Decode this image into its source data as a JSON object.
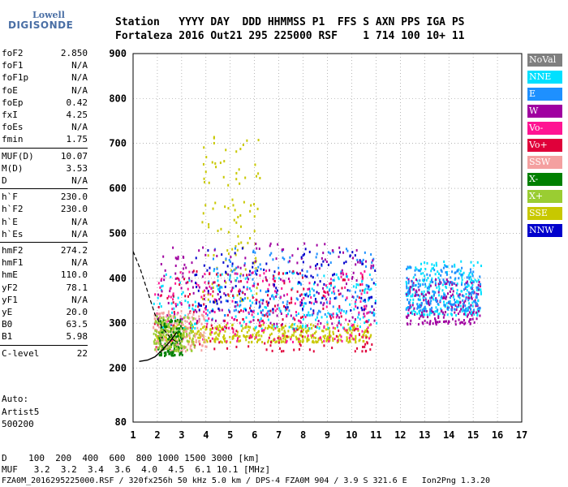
{
  "logo": {
    "top": "Lowell",
    "bottom": "DIGISONDE"
  },
  "header": {
    "line1": "Station   YYYY DAY  DDD HHMMSS P1  FFS S AXN PPS IGA PS",
    "line2": "Fortaleza 2016 Out21 295 225000 RSF    1 714 100 10+ 11"
  },
  "params": [
    {
      "k": "foF2",
      "v": "2.850"
    },
    {
      "k": "foF1",
      "v": "N/A"
    },
    {
      "k": "foF1p",
      "v": "N/A"
    },
    {
      "k": "foE",
      "v": "N/A"
    },
    {
      "k": "foEp",
      "v": "0.42"
    },
    {
      "k": "fxI",
      "v": "4.25"
    },
    {
      "k": "foEs",
      "v": "N/A"
    },
    {
      "k": "fmin",
      "v": "1.75"
    },
    {
      "k": "MUF(D)",
      "v": "10.07"
    },
    {
      "k": "M(D)",
      "v": "3.53"
    },
    {
      "k": "D",
      "v": "N/A"
    },
    {
      "k": "h`F",
      "v": "230.0"
    },
    {
      "k": "h`F2",
      "v": "230.0"
    },
    {
      "k": "h`E",
      "v": "N/A"
    },
    {
      "k": "h`Es",
      "v": "N/A"
    },
    {
      "k": "hmF2",
      "v": "274.2"
    },
    {
      "k": "hmF1",
      "v": "N/A"
    },
    {
      "k": "hmE",
      "v": "110.0"
    },
    {
      "k": "yF2",
      "v": "78.1"
    },
    {
      "k": "yF1",
      "v": "N/A"
    },
    {
      "k": "yE",
      "v": "20.0"
    },
    {
      "k": "B0",
      "v": "63.5"
    },
    {
      "k": "B1",
      "v": "5.98"
    },
    {
      "k": "C-level",
      "v": "22"
    }
  ],
  "auto": {
    "l1": "Auto:",
    "l2": "Artist5",
    "l3": "500200"
  },
  "legend": [
    {
      "label": "NoVal",
      "color": "#7f7f7f"
    },
    {
      "label": "NNE",
      "color": "#00e0ff"
    },
    {
      "label": "E",
      "color": "#1e90ff"
    },
    {
      "label": "W",
      "color": "#a000a0"
    },
    {
      "label": "Vo-",
      "color": "#ff1493"
    },
    {
      "label": "Vo+",
      "color": "#e0003a"
    },
    {
      "label": "SSW",
      "color": "#f4a0a0"
    },
    {
      "label": "X-",
      "color": "#008000"
    },
    {
      "label": "X+",
      "color": "#9acd32"
    },
    {
      "label": "SSE",
      "color": "#c8c800"
    },
    {
      "label": "NNW",
      "color": "#0000cc"
    }
  ],
  "bottom": {
    "d_row": "D    100  200  400  600  800 1000 1500 3000 [km]",
    "muf_row": "MUF   3.2  3.2  3.4  3.6  4.0  4.5  6.1 10.1 [MHz]",
    "footer": "FZA0M_2016295225000.RSF / 320fx256h 50 kHz 5.0 km / DPS-4 FZA0M 904 / 3.9 S 321.6 E   Ion2Png 1.3.20"
  },
  "chart_data": {
    "type": "scatter",
    "title": "",
    "xlabel": "",
    "ylabel": "",
    "x_ticks": [
      1,
      2,
      3,
      4,
      5,
      6,
      7,
      8,
      9,
      10,
      11,
      12,
      13,
      14,
      15,
      16,
      17
    ],
    "y_ticks": [
      80,
      200,
      300,
      400,
      500,
      600,
      700,
      800,
      900
    ],
    "xlim": [
      1,
      17
    ],
    "ylim": [
      80,
      900
    ],
    "clusters": [
      {
        "series": "SSE",
        "x_range": [
          1.9,
          10.8
        ],
        "y_range": [
          260,
          300
        ],
        "density": 1.0
      },
      {
        "series": "SSE",
        "x_range": [
          3.8,
          6.2
        ],
        "y_range": [
          350,
          730
        ],
        "density": 0.25
      },
      {
        "series": "NNE",
        "x_range": [
          1.8,
          11.0
        ],
        "y_range": [
          290,
          420
        ],
        "density": 0.5
      },
      {
        "series": "E",
        "x_range": [
          4.0,
          11.0
        ],
        "y_range": [
          320,
          470
        ],
        "density": 0.4
      },
      {
        "series": "W",
        "x_range": [
          2.0,
          11.0
        ],
        "y_range": [
          300,
          480
        ],
        "density": 0.5
      },
      {
        "series": "Vo-",
        "x_range": [
          1.8,
          10.8
        ],
        "y_range": [
          260,
          420
        ],
        "density": 0.5
      },
      {
        "series": "Vo+",
        "x_range": [
          1.8,
          10.8
        ],
        "y_range": [
          240,
          420
        ],
        "density": 0.4
      },
      {
        "series": "SSW",
        "x_range": [
          1.8,
          4.0
        ],
        "y_range": [
          240,
          330
        ],
        "density": 0.4
      },
      {
        "series": "X-",
        "x_range": [
          2.0,
          3.0
        ],
        "y_range": [
          230,
          310
        ],
        "density": 0.3
      },
      {
        "series": "X+",
        "x_range": [
          1.8,
          3.5
        ],
        "y_range": [
          240,
          320
        ],
        "density": 0.3
      },
      {
        "series": "NNW",
        "x_range": [
          3.5,
          11.0
        ],
        "y_range": [
          330,
          470
        ],
        "density": 0.3
      },
      {
        "series": "NNE",
        "x_range": [
          12.2,
          15.3
        ],
        "y_range": [
          320,
          440
        ],
        "density": 0.6
      },
      {
        "series": "W",
        "x_range": [
          12.2,
          15.3
        ],
        "y_range": [
          300,
          400
        ],
        "density": 0.5
      },
      {
        "series": "E",
        "x_range": [
          12.2,
          15.3
        ],
        "y_range": [
          330,
          430
        ],
        "density": 0.4
      }
    ],
    "profile_curve": [
      [
        1.0,
        460
      ],
      [
        1.3,
        420
      ],
      [
        1.6,
        370
      ],
      [
        1.9,
        320
      ],
      [
        2.2,
        290
      ],
      [
        2.5,
        270
      ],
      [
        2.85,
        255
      ]
    ],
    "trace_curve": [
      [
        1.25,
        215
      ],
      [
        1.6,
        218
      ],
      [
        1.9,
        225
      ],
      [
        2.2,
        240
      ],
      [
        2.5,
        258
      ],
      [
        2.8,
        280
      ]
    ]
  }
}
